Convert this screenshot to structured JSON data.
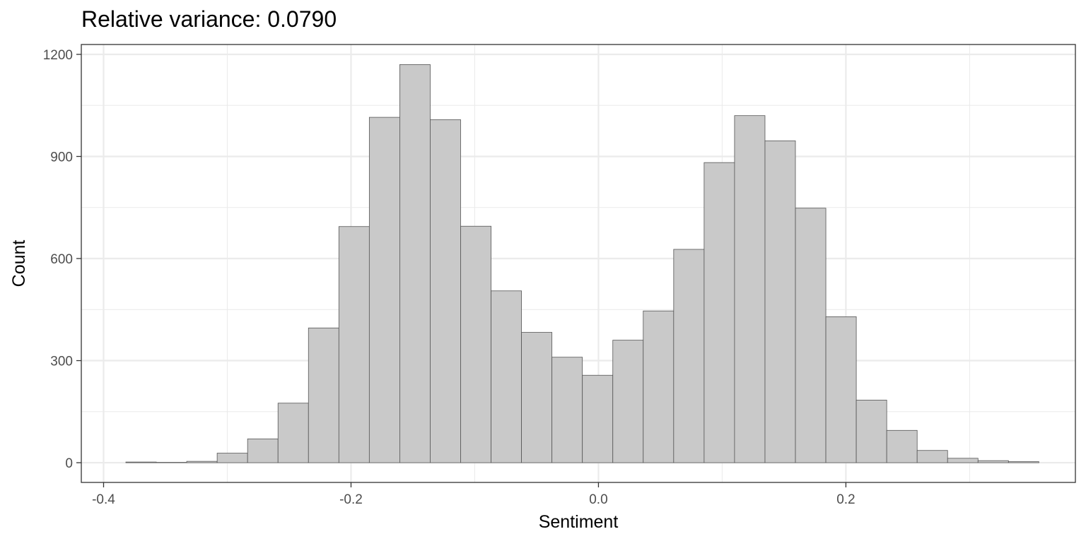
{
  "chart_data": {
    "type": "bar",
    "title": "Relative variance: 0.0790",
    "xlabel": "Sentiment",
    "ylabel": "Count",
    "bin_width": 0.0246,
    "x_bin_centers": [
      -0.3697,
      -0.3451,
      -0.3205,
      -0.2959,
      -0.2713,
      -0.2467,
      -0.2221,
      -0.1975,
      -0.1729,
      -0.1483,
      -0.1237,
      -0.0991,
      -0.0745,
      -0.0499,
      -0.0253,
      -0.0007,
      0.0239,
      0.0485,
      0.0731,
      0.0977,
      0.1223,
      0.1469,
      0.1715,
      0.1961,
      0.2207,
      0.2453,
      0.2699,
      0.2945,
      0.3191,
      0.3437
    ],
    "values": [
      2,
      1,
      4,
      28,
      70,
      175,
      396,
      694,
      1015,
      1170,
      1008,
      695,
      505,
      383,
      310,
      257,
      360,
      446,
      627,
      882,
      1020,
      946,
      748,
      429,
      184,
      95,
      36,
      13,
      6,
      3
    ],
    "xlim": [
      -0.418,
      0.3855
    ],
    "ylim": [
      -58,
      1229
    ],
    "x_ticks": [
      -0.4,
      -0.2,
      0.0,
      0.2
    ],
    "x_tick_labels": [
      "-0.4",
      "-0.2",
      "0.0",
      "0.2"
    ],
    "x_minor_ticks": [
      -0.3,
      -0.1,
      0.1,
      0.3
    ],
    "y_ticks": [
      0,
      300,
      600,
      900,
      1200
    ],
    "y_tick_labels": [
      "0",
      "300",
      "600",
      "900",
      "1200"
    ],
    "y_minor_ticks": [
      150,
      450,
      750,
      1050
    ],
    "grid": true,
    "legend": "none",
    "bar_fill": "#c9c9c9",
    "bar_stroke": "#555555",
    "grid_color": "#ebebeb",
    "panel_border": "#333333"
  }
}
